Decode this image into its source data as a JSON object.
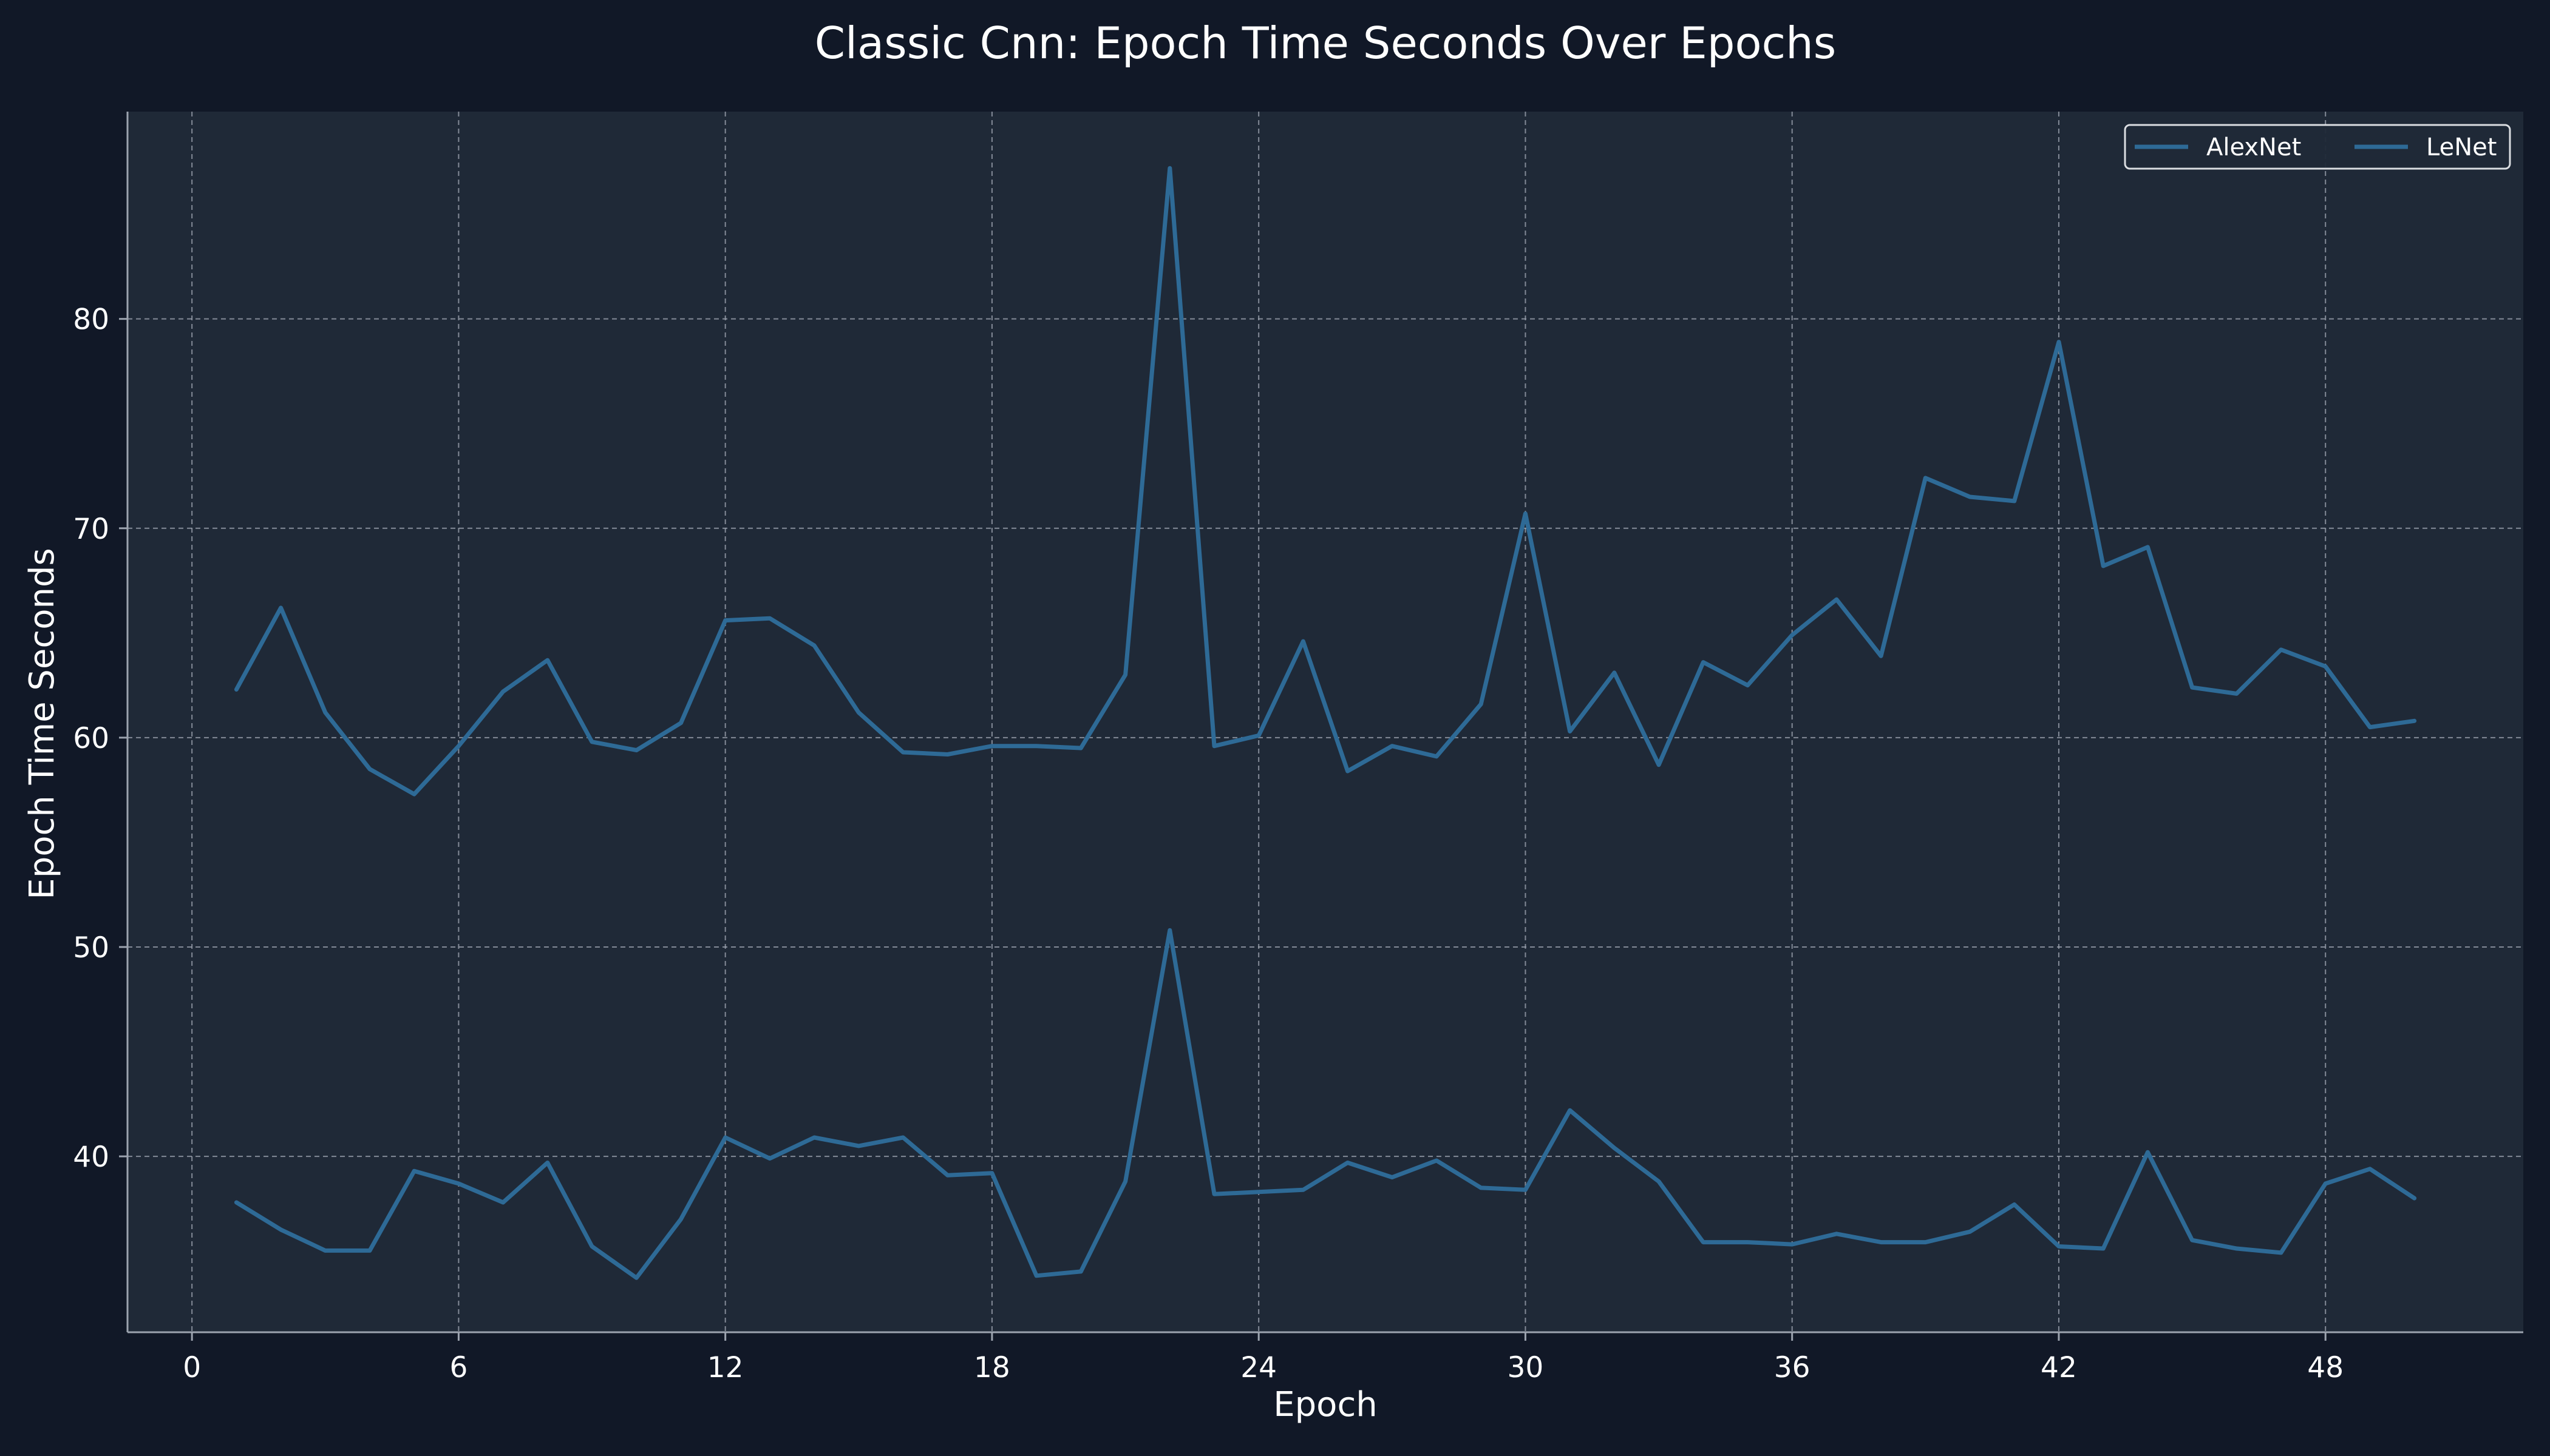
{
  "chart_data": {
    "type": "line",
    "title": "Classic Cnn: Epoch Time Seconds Over Epochs",
    "xlabel": "Epoch",
    "ylabel": "Epoch Time Seconds",
    "xlim": [
      -1.45,
      52.45
    ],
    "ylim": [
      31.6,
      89.9
    ],
    "xticks": [
      "0",
      "6",
      "12",
      "18",
      "24",
      "30",
      "36",
      "42",
      "48"
    ],
    "yticks": [
      "40",
      "50",
      "60",
      "70",
      "80"
    ],
    "grid": true,
    "legend_position": "top-right",
    "x": [
      1,
      2,
      3,
      4,
      5,
      6,
      7,
      8,
      9,
      10,
      11,
      12,
      13,
      14,
      15,
      16,
      17,
      18,
      19,
      20,
      21,
      22,
      23,
      24,
      25,
      26,
      27,
      28,
      29,
      30,
      31,
      32,
      33,
      34,
      35,
      36,
      37,
      38,
      39,
      40,
      41,
      42,
      43,
      44,
      45,
      46,
      47,
      48,
      49,
      50
    ],
    "series": [
      {
        "name": "AlexNet",
        "color": "#2e6a96",
        "values": [
          62.3,
          66.2,
          61.2,
          58.5,
          57.3,
          59.6,
          62.2,
          63.7,
          59.8,
          59.4,
          60.7,
          65.6,
          65.7,
          64.4,
          61.2,
          59.3,
          59.2,
          59.6,
          59.6,
          59.5,
          63.0,
          87.2,
          59.6,
          60.1,
          64.6,
          58.4,
          59.6,
          59.1,
          61.6,
          70.7,
          60.3,
          63.1,
          58.7,
          63.6,
          62.5,
          64.9,
          66.6,
          63.9,
          72.4,
          71.5,
          71.3,
          78.9,
          68.2,
          69.1,
          62.4,
          62.1,
          64.2,
          63.4,
          60.5,
          60.8
        ]
      },
      {
        "name": "LeNet",
        "color": "#2e6a96",
        "values": [
          37.8,
          36.5,
          35.5,
          35.5,
          39.3,
          38.7,
          37.8,
          39.7,
          35.7,
          34.2,
          37.0,
          40.9,
          39.9,
          40.9,
          40.5,
          40.9,
          39.1,
          39.2,
          34.3,
          34.5,
          38.8,
          50.8,
          38.2,
          38.3,
          38.4,
          39.7,
          39.0,
          39.8,
          38.5,
          38.4,
          42.2,
          40.4,
          38.8,
          35.9,
          35.9,
          35.8,
          36.3,
          35.9,
          35.9,
          36.4,
          37.7,
          35.7,
          35.6,
          40.2,
          36.0,
          35.6,
          35.4,
          38.7,
          39.4,
          38.0
        ]
      }
    ]
  }
}
